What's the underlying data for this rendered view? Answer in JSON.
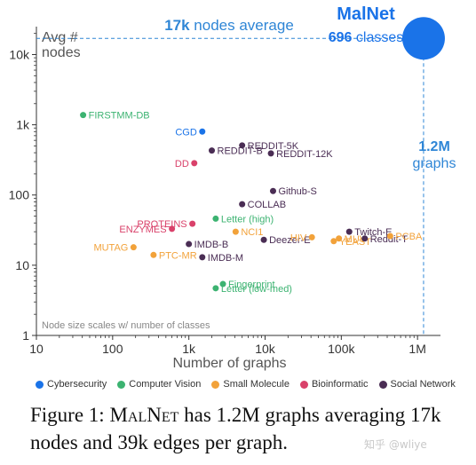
{
  "chart_data": {
    "type": "scatter",
    "title": "",
    "ylabel_annotation": "Avg #\nnodes",
    "xlabel": "Number of graphs",
    "xscale": "log",
    "yscale": "log",
    "xlim": [
      10,
      2000000
    ],
    "ylim": [
      1,
      25000
    ],
    "xticks": [
      {
        "v": 10,
        "label": "10"
      },
      {
        "v": 100,
        "label": "100"
      },
      {
        "v": 1000,
        "label": "1k"
      },
      {
        "v": 10000,
        "label": "10k"
      },
      {
        "v": 100000,
        "label": "100k"
      },
      {
        "v": 1000000,
        "label": "1M"
      }
    ],
    "yticks": [
      {
        "v": 1,
        "label": "1"
      },
      {
        "v": 10,
        "label": "10"
      },
      {
        "v": 100,
        "label": "100"
      },
      {
        "v": 1000,
        "label": "1k"
      },
      {
        "v": 10000,
        "label": "10k"
      }
    ],
    "grid": false,
    "categories": [
      {
        "key": "cyber",
        "name": "Cybersecurity",
        "color": "#1a73e8"
      },
      {
        "key": "cv",
        "name": "Computer Vision",
        "color": "#3cb371"
      },
      {
        "key": "mol",
        "name": "Small Molecule",
        "color": "#f2a23a"
      },
      {
        "key": "bio",
        "name": "Bioinformatic",
        "color": "#d9416a"
      },
      {
        "key": "social",
        "name": "Social Network",
        "color": "#4a2d54"
      }
    ],
    "points": [
      {
        "name": "FIRSTMM-DB",
        "cat": "cv",
        "x": 41,
        "y": 1377,
        "anchor": "start"
      },
      {
        "name": "CGD",
        "cat": "cyber",
        "x": 1500,
        "y": 800,
        "anchor": "end"
      },
      {
        "name": "REDDIT-5K",
        "cat": "social",
        "x": 5000,
        "y": 509,
        "anchor": "start"
      },
      {
        "name": "REDDIT-B",
        "cat": "social",
        "x": 2000,
        "y": 430,
        "anchor": "start"
      },
      {
        "name": "REDDIT-12K",
        "cat": "social",
        "x": 11929,
        "y": 391,
        "anchor": "start"
      },
      {
        "name": "DD",
        "cat": "bio",
        "x": 1178,
        "y": 284,
        "anchor": "end"
      },
      {
        "name": "Github-S",
        "cat": "social",
        "x": 12725,
        "y": 114,
        "anchor": "start"
      },
      {
        "name": "COLLAB",
        "cat": "social",
        "x": 5000,
        "y": 74,
        "anchor": "start"
      },
      {
        "name": "PROTEINS",
        "cat": "bio",
        "x": 1113,
        "y": 39,
        "anchor": "end"
      },
      {
        "name": "Letter (high)",
        "cat": "cv",
        "x": 2250,
        "y": 46,
        "anchor": "start"
      },
      {
        "name": "ENZYMES",
        "cat": "bio",
        "x": 600,
        "y": 33,
        "anchor": "end"
      },
      {
        "name": "NCI1",
        "cat": "mol",
        "x": 4110,
        "y": 30,
        "anchor": "start"
      },
      {
        "name": "IMDB-B",
        "cat": "social",
        "x": 1000,
        "y": 20,
        "anchor": "start"
      },
      {
        "name": "Deezer-E",
        "cat": "social",
        "x": 9629,
        "y": 23,
        "anchor": "start"
      },
      {
        "name": "HIV",
        "cat": "mol",
        "x": 41127,
        "y": 25,
        "anchor": "end"
      },
      {
        "name": "MUV",
        "cat": "mol",
        "x": 93087,
        "y": 24,
        "anchor": "start"
      },
      {
        "name": "YEAST",
        "cat": "mol",
        "x": 79601,
        "y": 22,
        "anchor": "start"
      },
      {
        "name": "Twitch-E",
        "cat": "social",
        "x": 127094,
        "y": 30,
        "anchor": "start"
      },
      {
        "name": "Reddit-T",
        "cat": "social",
        "x": 203088,
        "y": 24,
        "anchor": "start"
      },
      {
        "name": "PCBA",
        "cat": "mol",
        "x": 437929,
        "y": 26,
        "anchor": "start"
      },
      {
        "name": "MUTAG",
        "cat": "mol",
        "x": 188,
        "y": 18,
        "anchor": "end"
      },
      {
        "name": "IMDB-M",
        "cat": "social",
        "x": 1500,
        "y": 13,
        "anchor": "start"
      },
      {
        "name": "PTC-MR",
        "cat": "mol",
        "x": 344,
        "y": 14,
        "anchor": "start"
      },
      {
        "name": "Fingerprint",
        "cat": "cv",
        "x": 2800,
        "y": 5.4,
        "anchor": "start"
      },
      {
        "name": "Letter (low-med)",
        "cat": "cv",
        "x": 2250,
        "y": 4.7,
        "anchor": "start"
      }
    ],
    "malnet": {
      "name": "MalNet",
      "cat": "cyber",
      "x": 1200000,
      "y": 17000
    },
    "annotations": {
      "nodes_avg_bold": "17k",
      "nodes_avg_rest": " nodes average",
      "classes_bold": "696",
      "classes_rest": " classes",
      "graphs_bold": "1.2M",
      "graphs_rest": "graphs",
      "size_note": "Node size scales w/ number of classes"
    }
  },
  "caption": {
    "prefix": "Figure 1: ",
    "name": "MalNet",
    "suffix": " has 1.2M graphs averaging 17k nodes and 39k edges per graph."
  },
  "watermark": "知乎 @wliye"
}
